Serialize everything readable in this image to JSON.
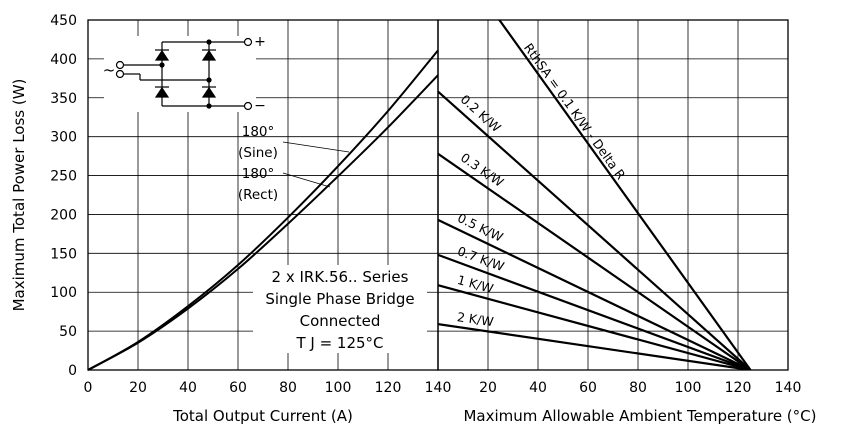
{
  "chart_data": [
    {
      "type": "line",
      "panel": "left",
      "ylabel": "Maximum Total Power Loss (W)",
      "xlabel": "Total Output Current (A)",
      "xlim": [
        0,
        140
      ],
      "ylim": [
        0,
        450
      ],
      "x_ticks": [
        "0",
        "20",
        "40",
        "60",
        "80",
        "100",
        "120",
        "140"
      ],
      "y_ticks": [
        "0",
        "50",
        "100",
        "150",
        "200",
        "250",
        "300",
        "350",
        "400",
        "450"
      ],
      "grid": true,
      "series": [
        {
          "name_lines": [
            "180°",
            "(Sine)"
          ],
          "x": [
            0,
            20,
            40,
            60,
            80,
            100,
            120,
            140
          ],
          "y": [
            0,
            36,
            82,
            135,
            196,
            262,
            333,
            411
          ]
        },
        {
          "name_lines": [
            "180°",
            "(Rect)"
          ],
          "x": [
            0,
            20,
            40,
            60,
            80,
            100,
            120,
            140
          ],
          "y": [
            0,
            35,
            79,
            130,
            188,
            249,
            312,
            379
          ]
        }
      ],
      "annotation": [
        "2 x IRK.56.. Series",
        "Single Phase Bridge",
        "Connected",
        "T J = 125°C"
      ]
    },
    {
      "type": "line",
      "panel": "right",
      "xlabel": "Maximum Allowable Ambient Temperature (°C)",
      "xlim": [
        0,
        140
      ],
      "ylim": [
        0,
        450
      ],
      "x_ticks": [
        "20",
        "40",
        "60",
        "80",
        "100",
        "120",
        "140"
      ],
      "grid": true,
      "series": [
        {
          "label": "RthSA = 0.1 K/W - Delta R",
          "x": [
            0,
            125
          ],
          "y": [
            560,
            0
          ]
        },
        {
          "label": "0.2 K/W",
          "x": [
            0,
            125
          ],
          "y": [
            358,
            0
          ]
        },
        {
          "label": "0.3 K/W",
          "x": [
            0,
            125
          ],
          "y": [
            278,
            0
          ]
        },
        {
          "label": "0.5 K/W",
          "x": [
            0,
            125
          ],
          "y": [
            193,
            0
          ]
        },
        {
          "label": "0.7 K/W",
          "x": [
            0,
            125
          ],
          "y": [
            148,
            0
          ]
        },
        {
          "label": "1 K/W",
          "x": [
            0,
            125
          ],
          "y": [
            109,
            0
          ]
        },
        {
          "label": "2 K/W",
          "x": [
            0,
            125
          ],
          "y": [
            59,
            0
          ]
        }
      ]
    }
  ],
  "circuit": {
    "ac_symbol": "~",
    "plus": "+",
    "minus": "−"
  },
  "colors": {
    "line": "#000000",
    "grid": "#000000",
    "background": "#ffffff"
  }
}
